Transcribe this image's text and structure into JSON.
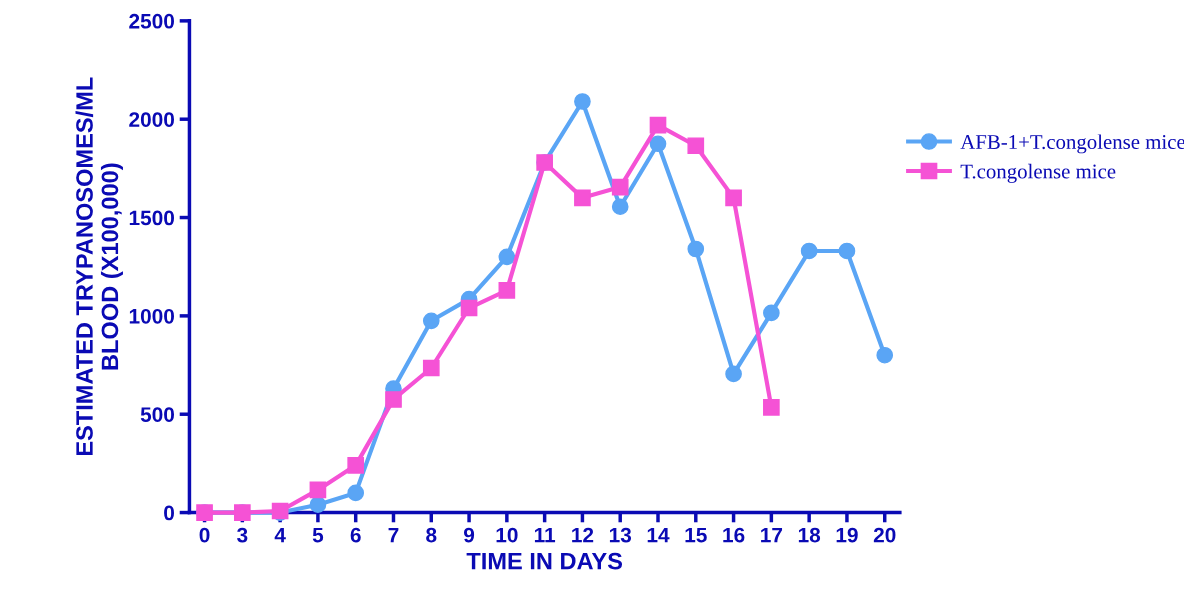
{
  "chart_data": {
    "type": "line",
    "xlabel": "TIME IN DAYS",
    "ylabel": "ESTIMATED TRYPANOSOMES/ML\nBLOOD (X100,000)",
    "categories": [
      "0",
      "3",
      "4",
      "5",
      "6",
      "7",
      "8",
      "9",
      "10",
      "11",
      "12",
      "13",
      "14",
      "15",
      "16",
      "17",
      "18",
      "19",
      "20"
    ],
    "series": [
      {
        "name": "AFB-1+T.congolense mice",
        "color": "#5aa5f5",
        "marker": "circle",
        "values": [
          0,
          0,
          0,
          40,
          100,
          630,
          975,
          1085,
          1300,
          1780,
          2090,
          1555,
          1875,
          1340,
          705,
          1015,
          1330,
          1330,
          800
        ]
      },
      {
        "name": "T.congolense mice",
        "color": "#f552d5",
        "marker": "square",
        "values": [
          0,
          0,
          8,
          115,
          240,
          575,
          735,
          1040,
          1130,
          1780,
          1600,
          1655,
          1970,
          1865,
          1600,
          535,
          null,
          null,
          null
        ]
      }
    ],
    "ylim": [
      0,
      2500
    ],
    "yticks": [
      0,
      500,
      1000,
      1500,
      2000,
      2500
    ],
    "grid": false,
    "legend": "right",
    "line_style": "solid"
  }
}
